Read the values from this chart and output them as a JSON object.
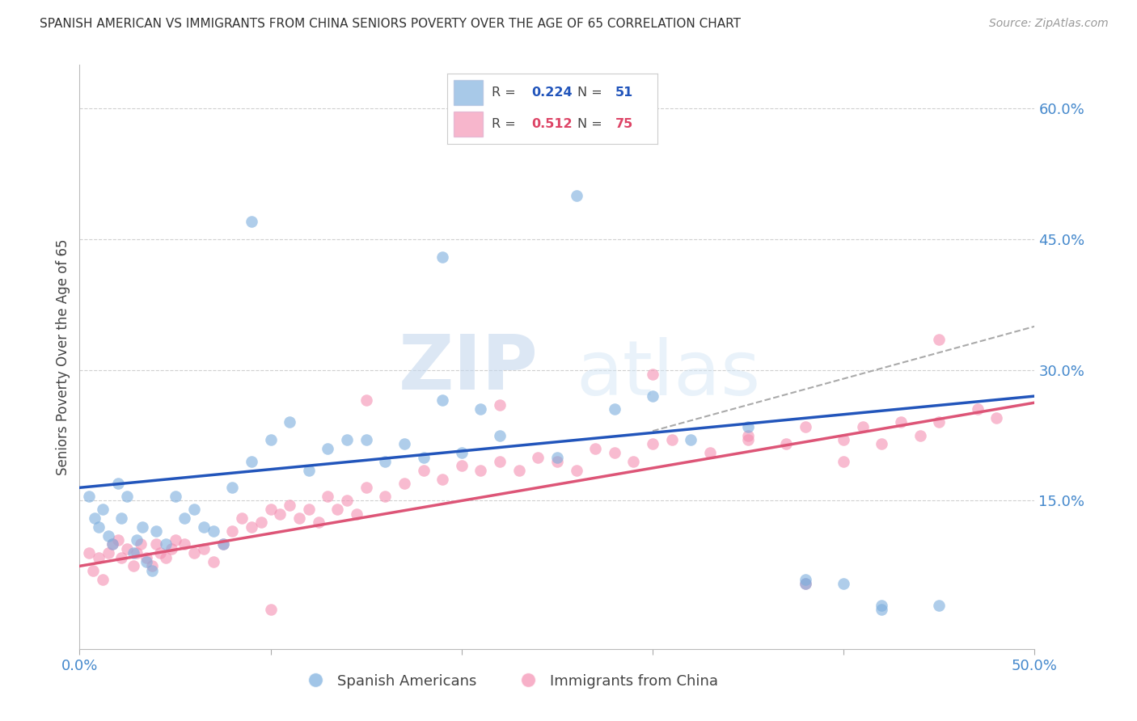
{
  "title": "SPANISH AMERICAN VS IMMIGRANTS FROM CHINA SENIORS POVERTY OVER THE AGE OF 65 CORRELATION CHART",
  "source": "Source: ZipAtlas.com",
  "ylabel": "Seniors Poverty Over the Age of 65",
  "xlim": [
    0.0,
    0.5
  ],
  "ylim": [
    -0.02,
    0.65
  ],
  "ytick_right_labels": [
    "60.0%",
    "45.0%",
    "30.0%",
    "15.0%"
  ],
  "ytick_right_values": [
    0.6,
    0.45,
    0.3,
    0.15
  ],
  "grid_color": "#d0d0d0",
  "background_color": "#ffffff",
  "blue_color": "#7aaddd",
  "pink_color": "#f48fb1",
  "blue_line_color": "#2255bb",
  "pink_line_color": "#dd5577",
  "dashed_line_color": "#aaaaaa",
  "legend_R1": "0.224",
  "legend_N1": "51",
  "legend_R2": "0.512",
  "legend_N2": "75",
  "legend_label1": "Spanish Americans",
  "legend_label2": "Immigrants from China",
  "watermark_part1": "ZIP",
  "watermark_part2": "atlas",
  "blue_intercept": 0.165,
  "blue_slope": 0.21,
  "pink_intercept": 0.075,
  "pink_slope": 0.375,
  "blue_x": [
    0.005,
    0.008,
    0.01,
    0.012,
    0.015,
    0.017,
    0.02,
    0.022,
    0.025,
    0.028,
    0.03,
    0.033,
    0.035,
    0.038,
    0.04,
    0.045,
    0.05,
    0.055,
    0.06,
    0.065,
    0.07,
    0.075,
    0.08,
    0.09,
    0.1,
    0.11,
    0.12,
    0.13,
    0.14,
    0.15,
    0.16,
    0.17,
    0.18,
    0.19,
    0.2,
    0.21,
    0.22,
    0.25,
    0.28,
    0.3,
    0.32,
    0.35,
    0.38,
    0.4,
    0.42,
    0.45,
    0.09,
    0.19,
    0.26,
    0.38,
    0.42
  ],
  "blue_y": [
    0.155,
    0.13,
    0.12,
    0.14,
    0.11,
    0.1,
    0.17,
    0.13,
    0.155,
    0.09,
    0.105,
    0.12,
    0.08,
    0.07,
    0.115,
    0.1,
    0.155,
    0.13,
    0.14,
    0.12,
    0.115,
    0.1,
    0.165,
    0.195,
    0.22,
    0.24,
    0.185,
    0.21,
    0.22,
    0.22,
    0.195,
    0.215,
    0.2,
    0.265,
    0.205,
    0.255,
    0.225,
    0.2,
    0.255,
    0.27,
    0.22,
    0.235,
    0.055,
    0.055,
    0.025,
    0.03,
    0.47,
    0.43,
    0.5,
    0.06,
    0.03
  ],
  "pink_x": [
    0.005,
    0.007,
    0.01,
    0.012,
    0.015,
    0.017,
    0.02,
    0.022,
    0.025,
    0.028,
    0.03,
    0.032,
    0.035,
    0.038,
    0.04,
    0.042,
    0.045,
    0.048,
    0.05,
    0.055,
    0.06,
    0.065,
    0.07,
    0.075,
    0.08,
    0.085,
    0.09,
    0.095,
    0.1,
    0.105,
    0.11,
    0.115,
    0.12,
    0.125,
    0.13,
    0.135,
    0.14,
    0.145,
    0.15,
    0.16,
    0.17,
    0.18,
    0.19,
    0.2,
    0.21,
    0.22,
    0.23,
    0.24,
    0.25,
    0.26,
    0.27,
    0.28,
    0.29,
    0.3,
    0.31,
    0.33,
    0.35,
    0.37,
    0.38,
    0.4,
    0.41,
    0.42,
    0.43,
    0.44,
    0.45,
    0.47,
    0.48,
    0.15,
    0.22,
    0.3,
    0.35,
    0.4,
    0.45,
    0.38,
    0.1
  ],
  "pink_y": [
    0.09,
    0.07,
    0.085,
    0.06,
    0.09,
    0.1,
    0.105,
    0.085,
    0.095,
    0.075,
    0.09,
    0.1,
    0.085,
    0.075,
    0.1,
    0.09,
    0.085,
    0.095,
    0.105,
    0.1,
    0.09,
    0.095,
    0.08,
    0.1,
    0.115,
    0.13,
    0.12,
    0.125,
    0.14,
    0.135,
    0.145,
    0.13,
    0.14,
    0.125,
    0.155,
    0.14,
    0.15,
    0.135,
    0.165,
    0.155,
    0.17,
    0.185,
    0.175,
    0.19,
    0.185,
    0.195,
    0.185,
    0.2,
    0.195,
    0.185,
    0.21,
    0.205,
    0.195,
    0.215,
    0.22,
    0.205,
    0.225,
    0.215,
    0.235,
    0.22,
    0.235,
    0.215,
    0.24,
    0.225,
    0.24,
    0.255,
    0.245,
    0.265,
    0.26,
    0.295,
    0.22,
    0.195,
    0.335,
    0.055,
    0.025
  ]
}
